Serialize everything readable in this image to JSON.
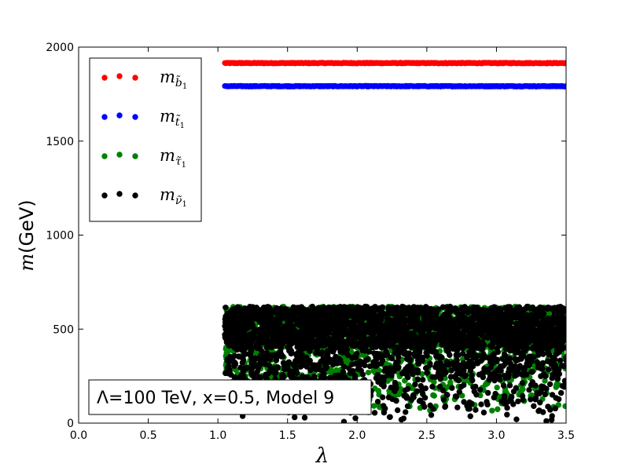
{
  "chart_data": {
    "type": "scatter",
    "xlabel": "λ",
    "ylabel": "m(GeV)",
    "xlim": [
      0.0,
      3.5
    ],
    "ylim": [
      0,
      2000
    ],
    "x_ticks": [
      "0.0",
      "0.5",
      "1.0",
      "1.5",
      "2.0",
      "2.5",
      "3.0",
      "3.5"
    ],
    "y_ticks": [
      "0",
      "500",
      "1000",
      "1500",
      "2000"
    ],
    "grid": false,
    "legend_position": "upper-left",
    "annotation": "Λ=100 TeV, x=0.5, Model 9",
    "series": [
      {
        "name": "m_b̃1",
        "label_main": "m",
        "label_sub": "b̃",
        "label_subsub": "1",
        "color": "#ff0000",
        "shape": "flat band",
        "x_range": [
          1.05,
          3.5
        ],
        "y_value": 1915
      },
      {
        "name": "m_t̃1",
        "label_main": "m",
        "label_sub": "t̃",
        "label_subsub": "1",
        "color": "#0000ff",
        "shape": "flat band",
        "x_range": [
          1.05,
          3.5
        ],
        "y_value": 1792
      },
      {
        "name": "m_τ̃1",
        "label_main": "m",
        "label_sub": "τ̃",
        "label_subsub": "1",
        "color": "#008000",
        "shape": "dense cloud",
        "x_range": [
          1.05,
          3.5
        ],
        "y_range": [
          60,
          620
        ]
      },
      {
        "name": "m_ν̃1",
        "label_main": "m",
        "label_sub": "ν̃",
        "label_subsub": "1",
        "color": "#000000",
        "shape": "dense cloud",
        "x_range": [
          1.05,
          3.5
        ],
        "y_range": [
          0,
          620
        ]
      }
    ]
  }
}
